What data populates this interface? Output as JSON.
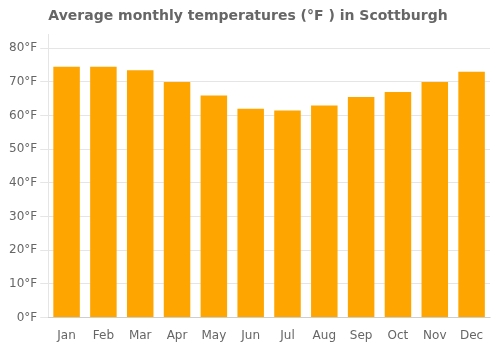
{
  "chart_data": {
    "type": "bar",
    "title": "Average monthly temperatures (°F ) in Scottburgh",
    "categories": [
      "Jan",
      "Feb",
      "Mar",
      "Apr",
      "May",
      "Jun",
      "Jul",
      "Aug",
      "Sep",
      "Oct",
      "Nov",
      "Dec"
    ],
    "values": [
      74.5,
      74.5,
      73.5,
      70.0,
      66.0,
      62.0,
      61.5,
      63.0,
      65.5,
      67.0,
      70.0,
      73.0
    ],
    "color": "#FFA500",
    "ylim": [
      0,
      84
    ],
    "yticks": [
      {
        "value": 0,
        "label": "0°F"
      },
      {
        "value": 10,
        "label": "10°F"
      },
      {
        "value": 20,
        "label": "20°F"
      },
      {
        "value": 30,
        "label": "30°F"
      },
      {
        "value": 40,
        "label": "40°F"
      },
      {
        "value": 50,
        "label": "50°F"
      },
      {
        "value": 60,
        "label": "60°F"
      },
      {
        "value": 70,
        "label": "70°F"
      },
      {
        "value": 80,
        "label": "80°F"
      }
    ],
    "grid": true
  }
}
